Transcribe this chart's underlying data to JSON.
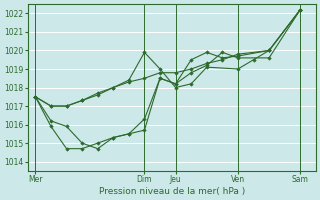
{
  "background_color": "#cce8e8",
  "grid_color": "#ffffff",
  "line_color": "#2d6a2d",
  "marker_color": "#2d6a2d",
  "xlabel": "Pression niveau de la mer( hPa )",
  "ylim": [
    1013.5,
    1022.5
  ],
  "yticks": [
    1014,
    1015,
    1016,
    1017,
    1018,
    1019,
    1020,
    1021,
    1022
  ],
  "x_day_labels": [
    "Mer",
    "Dim",
    "Jeu",
    "Ven",
    "Sam"
  ],
  "x_day_positions": [
    0,
    7,
    9,
    13,
    17
  ],
  "x_vlines": [
    0,
    7,
    9,
    13,
    17
  ],
  "xlim": [
    -0.5,
    18
  ],
  "series": [
    [
      1017.5,
      1017.0,
      1017.0,
      1017.3,
      1017.6,
      1018.0,
      1018.3,
      1018.5,
      1018.8,
      1018.8,
      1019.0,
      1019.3,
      1019.5,
      1019.8,
      1020.0,
      1022.2
    ],
    [
      1017.5,
      1017.0,
      1017.0,
      1017.3,
      1017.7,
      1018.0,
      1018.4,
      1019.9,
      1019.0,
      1018.0,
      1018.2,
      1019.1,
      1019.0,
      1019.5,
      1020.0,
      1022.2
    ],
    [
      1017.5,
      1015.9,
      1014.7,
      1014.7,
      1015.0,
      1015.3,
      1015.5,
      1016.3,
      1018.5,
      1018.2,
      1019.5,
      1019.9,
      1019.6,
      1019.7,
      1020.0,
      1022.2
    ],
    [
      1017.5,
      1016.2,
      1015.9,
      1015.0,
      1014.7,
      1015.3,
      1015.5,
      1015.7,
      1018.5,
      1018.2,
      1018.8,
      1019.2,
      1019.9,
      1019.6,
      1019.6,
      1022.2
    ]
  ],
  "series_x": [
    [
      0,
      1,
      2,
      3,
      4,
      5,
      6,
      7,
      8,
      9,
      10,
      11,
      12,
      13,
      15,
      17
    ],
    [
      0,
      1,
      2,
      3,
      4,
      5,
      6,
      7,
      8,
      9,
      10,
      11,
      13,
      14,
      15,
      17
    ],
    [
      0,
      1,
      2,
      3,
      4,
      5,
      6,
      7,
      8,
      9,
      10,
      11,
      12,
      13,
      15,
      17
    ],
    [
      0,
      1,
      2,
      3,
      4,
      5,
      6,
      7,
      8,
      9,
      10,
      11,
      12,
      13,
      15,
      17
    ]
  ]
}
